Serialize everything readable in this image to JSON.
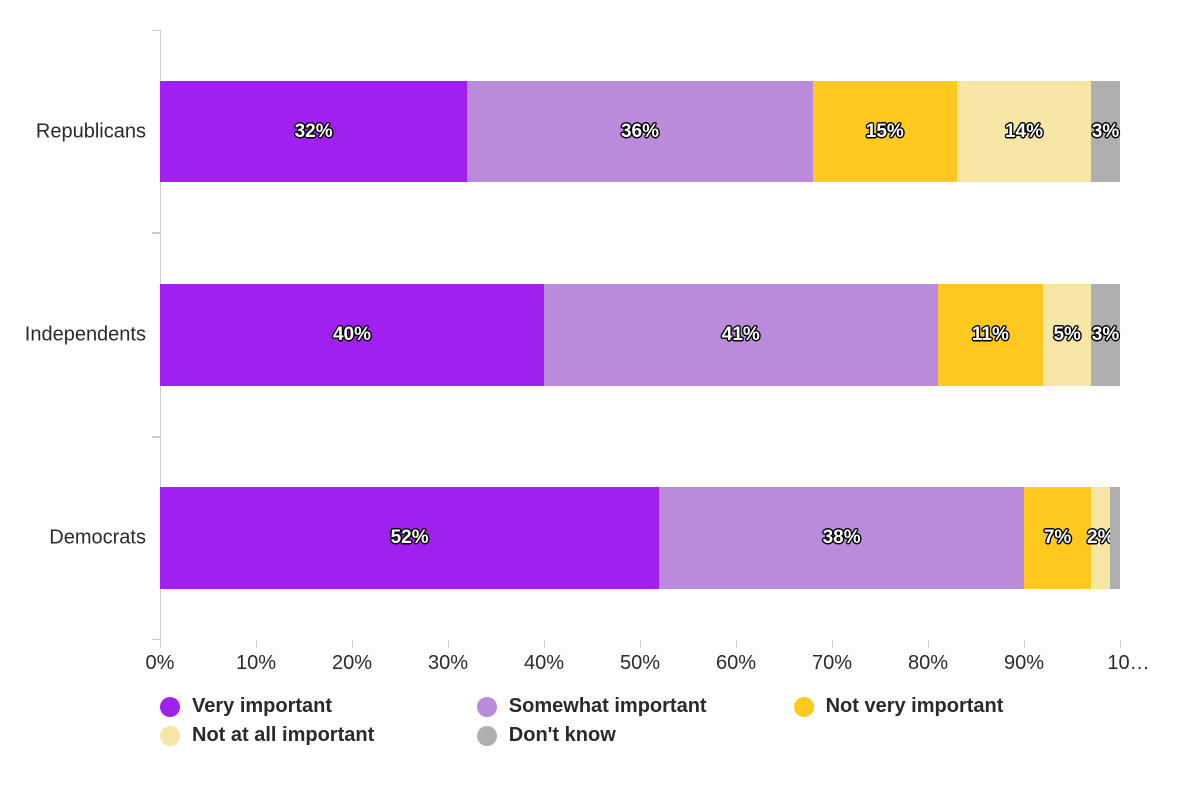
{
  "chart": {
    "type": "stacked-bar-horizontal",
    "background_color": "#ffffff",
    "text_color": "#2a2a2a",
    "axis_color": "#cccccc",
    "tick_color": "#cccccc",
    "grid": false,
    "xlim": [
      0,
      100
    ],
    "xtick_step": 10,
    "xtick_suffix": "%",
    "last_tick_truncated_label": "10…",
    "bar_width_ratio": 0.5,
    "font_size_axis": 20,
    "font_size_bar_label": 19,
    "font_size_legend": 20,
    "categories": [
      "Republicans",
      "Independents",
      "Democrats"
    ],
    "series": [
      {
        "key": "very_important",
        "label": "Very important",
        "color": "#a020f0"
      },
      {
        "key": "somewhat_important",
        "label": "Somewhat important",
        "color": "#ba8adb"
      },
      {
        "key": "not_very_important",
        "label": "Not very important",
        "color": "#ffc91f"
      },
      {
        "key": "not_at_all",
        "label": "Not at all important",
        "color": "#f5e6a6"
      },
      {
        "key": "dont_know",
        "label": "Don't know",
        "color": "#afafaf"
      }
    ],
    "data": {
      "Republicans": {
        "very_important": 32,
        "somewhat_important": 36,
        "not_very_important": 15,
        "not_at_all": 14,
        "dont_know": 3
      },
      "Independents": {
        "very_important": 40,
        "somewhat_important": 41,
        "not_very_important": 11,
        "not_at_all": 5,
        "dont_know": 3
      },
      "Democrats": {
        "very_important": 52,
        "somewhat_important": 38,
        "not_very_important": 7,
        "not_at_all": 2,
        "dont_know": 1
      }
    },
    "label_min_pct_to_show": 2
  }
}
